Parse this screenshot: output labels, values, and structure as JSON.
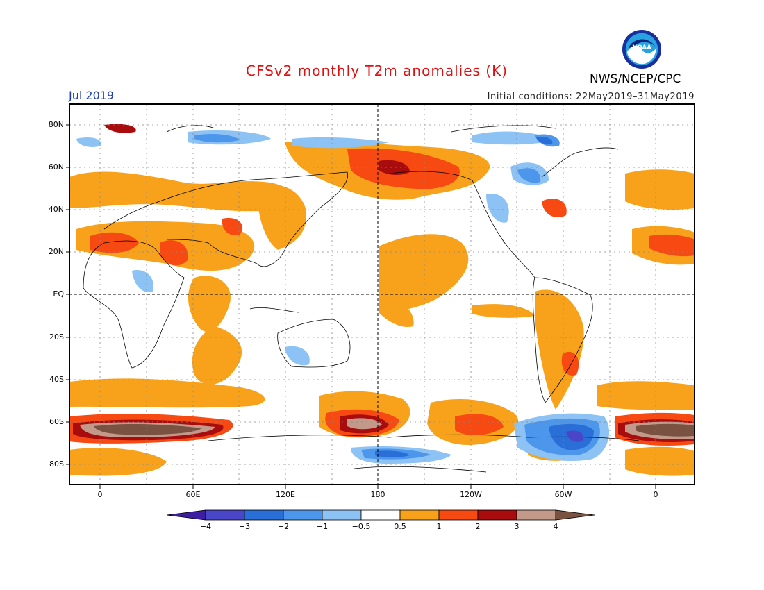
{
  "title": "CFSv2 monthly T2m anomalies (K)",
  "period": "Jul 2019",
  "initial_conditions": "Initial conditions: 22May2019–31May2019",
  "agency": "NWS/NCEP/CPC",
  "logo_text": "NOAA",
  "lat_labels": [
    "80N",
    "60N",
    "40N",
    "20N",
    "EQ",
    "20S",
    "40S",
    "60S",
    "80S"
  ],
  "lon_labels": [
    "0",
    "60E",
    "120E",
    "180",
    "120W",
    "60W",
    "0"
  ],
  "colorbar": {
    "labels": [
      "−4",
      "−3",
      "−2",
      "−1",
      "−0.5",
      "0.5",
      "1",
      "2",
      "3",
      "4"
    ],
    "colors": [
      "#3c1ea0",
      "#4a46c8",
      "#2a6ed8",
      "#4c96ec",
      "#8cc2f4",
      "#ffffff",
      "#f7a21a",
      "#f74a12",
      "#a80c0c",
      "#c39a8a",
      "#7a5242"
    ]
  },
  "colors": {
    "title": "#e01010",
    "period": "#1e3cb4",
    "coast": "#000000",
    "grid": "#888888"
  }
}
